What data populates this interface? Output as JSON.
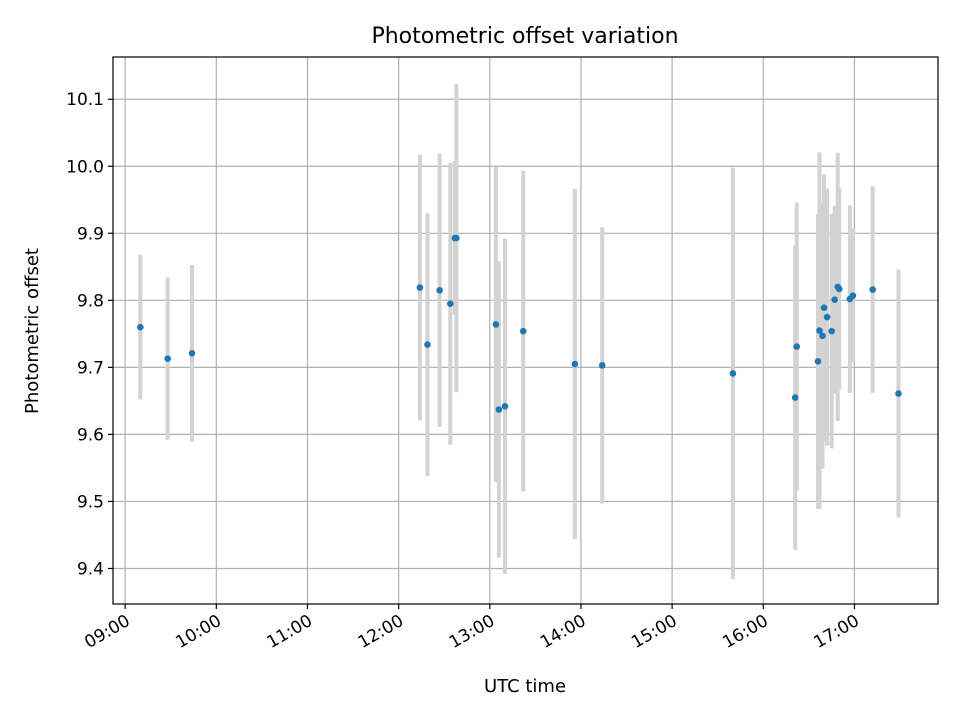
{
  "chart_data": {
    "type": "scatter",
    "title": "Photometric offset variation",
    "xlabel": "UTC time",
    "ylabel": "Photometric offset",
    "x_ticks": [
      "09:00",
      "10:00",
      "11:00",
      "12:00",
      "13:00",
      "14:00",
      "15:00",
      "16:00",
      "17:00"
    ],
    "y_ticks": [
      "9.4",
      "9.5",
      "9.6",
      "9.7",
      "9.8",
      "9.9",
      "10.0",
      "10.1"
    ],
    "xlim": [
      "08:52",
      "17:55"
    ],
    "ylim": [
      9.347,
      10.163
    ],
    "grid": true,
    "colors": {
      "point": "#1f77b4",
      "errorbar": "#d3d3d3",
      "grid": "#b0b0b0"
    },
    "series": [
      {
        "points": [
          {
            "x": "09:10",
            "y": 9.76,
            "err": 0.108
          },
          {
            "x": "09:28",
            "y": 9.713,
            "err": 0.121
          },
          {
            "x": "09:44",
            "y": 9.721,
            "err": 0.132
          },
          {
            "x": "12:14",
            "y": 9.819,
            "err": 0.198
          },
          {
            "x": "12:19",
            "y": 9.734,
            "err": 0.196
          },
          {
            "x": "12:27",
            "y": 9.815,
            "err": 0.204
          },
          {
            "x": "12:34",
            "y": 9.795,
            "err": 0.21
          },
          {
            "x": "12:37",
            "y": 9.893,
            "err": 0.115
          },
          {
            "x": "12:38",
            "y": 9.893,
            "err": 0.23
          },
          {
            "x": "13:04",
            "y": 9.764,
            "err": 0.235
          },
          {
            "x": "13:06",
            "y": 9.637,
            "err": 0.221
          },
          {
            "x": "13:10",
            "y": 9.642,
            "err": 0.25
          },
          {
            "x": "13:22",
            "y": 9.754,
            "err": 0.239
          },
          {
            "x": "13:56",
            "y": 9.705,
            "err": 0.261
          },
          {
            "x": "14:14",
            "y": 9.703,
            "err": 0.206
          },
          {
            "x": "15:40",
            "y": 9.691,
            "err": 0.307
          },
          {
            "x": "16:21",
            "y": 9.655,
            "err": 0.227
          },
          {
            "x": "16:22",
            "y": 9.731,
            "err": 0.215
          },
          {
            "x": "16:36",
            "y": 9.709,
            "err": 0.22
          },
          {
            "x": "16:37",
            "y": 9.755,
            "err": 0.266
          },
          {
            "x": "16:39",
            "y": 9.747,
            "err": 0.198
          },
          {
            "x": "16:40",
            "y": 9.789,
            "err": 0.199
          },
          {
            "x": "16:42",
            "y": 9.775,
            "err": 0.192
          },
          {
            "x": "16:45",
            "y": 9.754,
            "err": 0.175
          },
          {
            "x": "16:47",
            "y": 9.801,
            "err": 0.14
          },
          {
            "x": "16:49",
            "y": 9.82,
            "err": 0.2
          },
          {
            "x": "16:50",
            "y": 9.817,
            "err": 0.15
          },
          {
            "x": "16:57",
            "y": 9.802,
            "err": 0.14
          },
          {
            "x": "16:59",
            "y": 9.807,
            "err": 0.1
          },
          {
            "x": "17:12",
            "y": 9.816,
            "err": 0.154
          },
          {
            "x": "17:29",
            "y": 9.661,
            "err": 0.185
          }
        ]
      }
    ]
  }
}
